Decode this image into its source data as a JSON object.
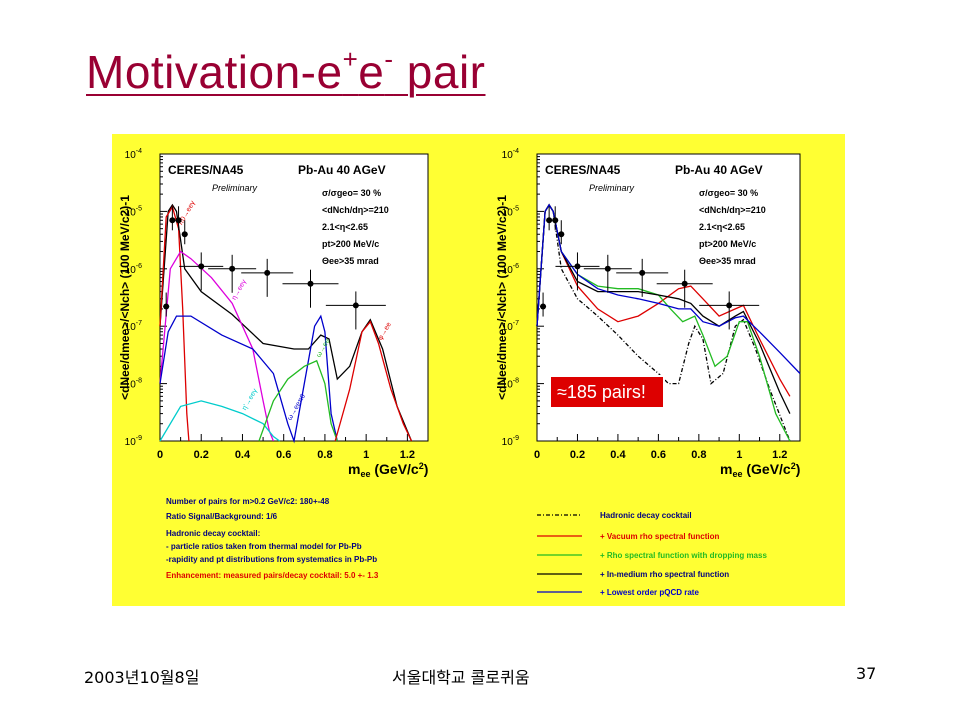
{
  "slide": {
    "title_main": "Motivation-e",
    "title_sup1": "+",
    "title_mid": "e",
    "title_sup2": "-",
    "title_end": " pair"
  },
  "footer": {
    "date": "2003년10월8일",
    "institution": "서울대학교 콜로퀴움",
    "page": "37"
  },
  "colors": {
    "panel_bg": "#ffff33",
    "title": "#990033",
    "black": "#000000",
    "red": "#dd0000",
    "green": "#22bb22",
    "blue": "#0000cc",
    "magenta": "#dd00dd",
    "cyan": "#00cccc"
  },
  "chart_data": [
    {
      "type": "line",
      "experiment": "CERES/NA45",
      "system": "Pb-Au 40 AGeV",
      "note": "Preliminary",
      "cuts": [
        "σ/σgeo= 30 %",
        "<dNch/dη>=210",
        "2.1<η<2.65",
        "pt>200 MeV/c",
        "Θee>35 mrad"
      ],
      "xlabel": "mee (GeV/c2)",
      "ylabel": "<dNee/dmee>/<Nch> (100 MeV/c2)-1",
      "xlim": [
        0,
        1.3
      ],
      "ylim": [
        1e-09,
        0.0001
      ],
      "yscale": "log",
      "x_ticks": [
        "0",
        "0.2",
        "0.4",
        "0.6",
        "0.8",
        "1",
        "1.2"
      ],
      "y_ticks": [
        "10-9",
        "10-8",
        "10-7",
        "10-6",
        "10-5",
        "10-4"
      ],
      "data_points": {
        "x": [
          0.03,
          0.06,
          0.09,
          0.12,
          0.2,
          0.35,
          0.52,
          0.73,
          0.95
        ],
        "y": [
          2.2e-07,
          7e-06,
          7e-06,
          4e-06,
          1.1e-06,
          1e-06,
          8.5e-07,
          5.5e-07,
          2.3e-07
        ]
      },
      "series": [
        {
          "color": "black",
          "x": [
            0.0,
            0.04,
            0.06,
            0.08,
            0.12,
            0.2,
            0.35,
            0.5,
            0.65,
            0.72,
            0.78,
            0.82,
            0.86,
            0.92,
            0.98,
            1.02,
            1.08,
            1.15,
            1.22
          ],
          "y": [
            1e-07,
            1e-05,
            1.3e-05,
            1e-05,
            1e-06,
            4e-07,
            1.6e-07,
            5e-08,
            4e-08,
            4e-08,
            7e-08,
            6e-08,
            1.2e-08,
            2e-08,
            8e-08,
            1.3e-07,
            4e-08,
            4e-09,
            5e-10
          ]
        },
        {
          "label": "π0→eeγ",
          "color": "red",
          "x": [
            0.0,
            0.03,
            0.06,
            0.09,
            0.11,
            0.13,
            0.14
          ],
          "y": [
            1e-07,
            8e-06,
            1.2e-05,
            5e-06,
            2e-07,
            3e-09,
            1e-09
          ]
        },
        {
          "label": "η→eeγ",
          "color": "magenta",
          "x": [
            0.0,
            0.05,
            0.1,
            0.15,
            0.25,
            0.35,
            0.45,
            0.5,
            0.53,
            0.55
          ],
          "y": [
            1e-08,
            1e-06,
            2e-06,
            1.5e-06,
            7e-07,
            2.5e-07,
            4e-08,
            5e-09,
            1.5e-09,
            1e-09
          ]
        },
        {
          "label": "ω→eeπ0",
          "color": "blue",
          "x": [
            0.0,
            0.04,
            0.08,
            0.15,
            0.3,
            0.45,
            0.55,
            0.62,
            0.65,
            0.7,
            0.75,
            0.78,
            0.8,
            0.83,
            0.86
          ],
          "y": [
            1e-08,
            8e-08,
            1.5e-07,
            1.5e-07,
            7e-08,
            4e-08,
            1.5e-08,
            2e-09,
            1e-09,
            1e-08,
            1e-07,
            1.5e-07,
            8e-08,
            3e-09,
            1e-09
          ]
        },
        {
          "label": "η'→eeγ",
          "color": "cyan",
          "x": [
            0.0,
            0.1,
            0.2,
            0.3,
            0.4,
            0.5,
            0.55,
            0.58
          ],
          "y": [
            1e-09,
            4e-09,
            5e-09,
            4e-09,
            3e-09,
            2e-09,
            1.2e-09,
            1e-09
          ]
        },
        {
          "label": "ω→ee",
          "color": "green",
          "x": [
            0.48,
            0.55,
            0.62,
            0.7,
            0.76,
            0.8,
            0.83,
            0.86
          ],
          "y": [
            1e-09,
            5e-09,
            1.2e-08,
            2e-08,
            2.5e-08,
            1e-08,
            2e-09,
            1e-09
          ]
        },
        {
          "label": "φ→ee",
          "color": "red",
          "x": [
            0.85,
            0.92,
            0.98,
            1.02,
            1.06,
            1.12,
            1.18,
            1.22
          ],
          "y": [
            1e-09,
            8e-09,
            8e-08,
            1.2e-07,
            5e-08,
            8e-09,
            2e-09,
            1e-09
          ]
        }
      ],
      "annotations": [
        "Number of pairs for m>0.2 GeV/c2: 180+-48",
        "Ratio Signal/Background: 1/6",
        "Hadronic decay cocktail:",
        "- particle ratios taken from thermal model for Pb-Pb",
        "-rapidity and pt distributions from systematics in Pb-Pb",
        "Enhancement: measured pairs/decay cocktail: 5.0 +- 1.3"
      ]
    },
    {
      "type": "line",
      "experiment": "CERES/NA45",
      "system": "Pb-Au 40 AGeV",
      "note": "Preliminary",
      "cuts": [
        "σ/σgeo= 30 %",
        "<dNch/dη>=210",
        "2.1<η<2.65",
        "pt>200 MeV/c",
        "Θee>35 mrad"
      ],
      "xlabel": "mee (GeV/c2)",
      "ylabel": "<dNee/dmee>/<Nch> (100 MeV/c2)-1",
      "xlim": [
        0,
        1.3
      ],
      "ylim": [
        1e-09,
        0.0001
      ],
      "yscale": "log",
      "x_ticks": [
        "0",
        "0.2",
        "0.4",
        "0.6",
        "0.8",
        "1",
        "1.2"
      ],
      "y_ticks": [
        "10-9",
        "10-8",
        "10-7",
        "10-6",
        "10-5",
        "10-4"
      ],
      "callout": "≈185 pairs!",
      "data_points": {
        "x": [
          0.03,
          0.06,
          0.09,
          0.12,
          0.2,
          0.35,
          0.52,
          0.73,
          0.95
        ],
        "y": [
          2.2e-07,
          7e-06,
          7e-06,
          4e-06,
          1.1e-06,
          1e-06,
          8.5e-07,
          5.5e-07,
          2.3e-07
        ]
      },
      "series": [
        {
          "label": "Hadronic decay cocktail",
          "color": "black",
          "dash": "dashdot",
          "x": [
            0.0,
            0.04,
            0.06,
            0.08,
            0.12,
            0.2,
            0.3,
            0.4,
            0.5,
            0.6,
            0.65,
            0.7,
            0.75,
            0.78,
            0.82,
            0.86,
            0.92,
            0.98,
            1.02,
            1.08,
            1.15,
            1.25
          ],
          "y": [
            1e-07,
            1e-05,
            1.3e-05,
            1e-05,
            1e-06,
            3e-07,
            1.5e-07,
            7e-08,
            3e-08,
            1.5e-08,
            1e-08,
            1e-08,
            5e-08,
            1e-07,
            6e-08,
            1e-08,
            1.5e-08,
            1e-07,
            1.3e-07,
            4e-08,
            8e-09,
            1e-09
          ]
        },
        {
          "label": "+ Vacuum rho spectral function",
          "color": "red",
          "x": [
            0.0,
            0.04,
            0.06,
            0.08,
            0.12,
            0.2,
            0.3,
            0.4,
            0.5,
            0.6,
            0.7,
            0.76,
            0.82,
            0.9,
            0.98,
            1.02,
            1.1,
            1.2,
            1.25
          ],
          "y": [
            1e-07,
            1e-05,
            1.3e-05,
            1e-05,
            2e-06,
            5e-07,
            2e-07,
            1.2e-07,
            1.5e-07,
            2.5e-07,
            4.5e-07,
            5e-07,
            3e-07,
            1.5e-07,
            2e-07,
            2.3e-07,
            6e-08,
            1.2e-08,
            6e-09
          ]
        },
        {
          "label": "+ Rho spectral function with dropping mass",
          "color": "green",
          "x": [
            0.0,
            0.04,
            0.06,
            0.08,
            0.12,
            0.2,
            0.3,
            0.4,
            0.5,
            0.6,
            0.66,
            0.72,
            0.78,
            0.82,
            0.88,
            0.94,
            1.0,
            1.04,
            1.1,
            1.18,
            1.25
          ],
          "y": [
            1e-07,
            1e-05,
            1.3e-05,
            1e-05,
            2e-06,
            8e-07,
            5e-07,
            4.5e-07,
            4.5e-07,
            3.5e-07,
            2e-07,
            1.2e-07,
            1.5e-07,
            7e-08,
            2e-08,
            3e-08,
            1.2e-07,
            1.2e-07,
            3e-08,
            3e-09,
            1e-09
          ]
        },
        {
          "label": "+ In-medium rho spectral function",
          "color": "black",
          "x": [
            0.0,
            0.04,
            0.06,
            0.08,
            0.12,
            0.2,
            0.3,
            0.4,
            0.5,
            0.6,
            0.7,
            0.76,
            0.82,
            0.9,
            0.98,
            1.02,
            1.1,
            1.2,
            1.25
          ],
          "y": [
            1e-07,
            1e-05,
            1.3e-05,
            1e-05,
            2e-06,
            6e-07,
            4e-07,
            4e-07,
            4e-07,
            3.5e-07,
            3e-07,
            2.5e-07,
            1.5e-07,
            1e-07,
            1.5e-07,
            1.8e-07,
            5e-08,
            7e-09,
            3e-09
          ]
        },
        {
          "label": "+ Lowest order pQCD rate",
          "color": "blue",
          "x": [
            0.0,
            0.04,
            0.06,
            0.08,
            0.12,
            0.2,
            0.3,
            0.4,
            0.5,
            0.6,
            0.7,
            0.76,
            0.82,
            0.9,
            0.98,
            1.02,
            1.1,
            1.2,
            1.3
          ],
          "y": [
            1e-07,
            1e-05,
            1.3e-05,
            1e-05,
            2e-06,
            8e-07,
            4.5e-07,
            3.5e-07,
            3e-07,
            2.5e-07,
            2e-07,
            2e-07,
            1.2e-07,
            1e-07,
            1.4e-07,
            1.5e-07,
            8e-08,
            3.5e-08,
            1.5e-08
          ]
        }
      ]
    }
  ]
}
